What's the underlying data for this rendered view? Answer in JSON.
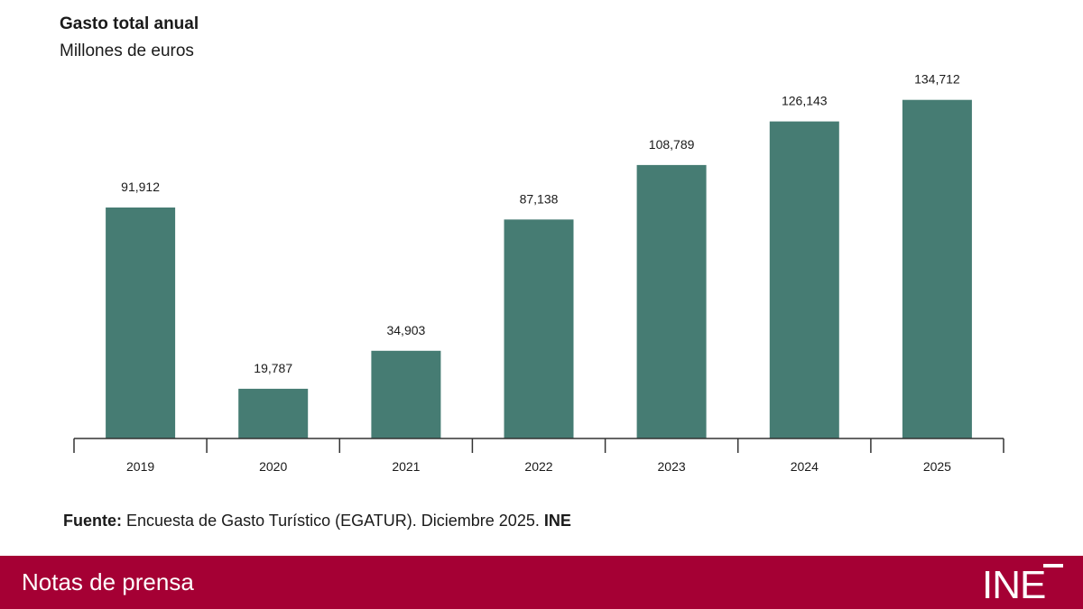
{
  "chart_data": {
    "type": "bar",
    "title": "Gasto total anual",
    "subtitle": "Millones de euros",
    "categories": [
      "2019",
      "2020",
      "2021",
      "2022",
      "2023",
      "2024",
      "2025"
    ],
    "values": [
      91912,
      19787,
      34903,
      87138,
      108789,
      126143,
      134712
    ],
    "value_labels": [
      "91,912",
      "19,787",
      "34,903",
      "87,138",
      "108,789",
      "126,143",
      "134,712"
    ],
    "ylim": [
      0,
      140000
    ],
    "xlabel": "",
    "ylabel": "",
    "grid": false,
    "bar_color": "#467c73"
  },
  "source": {
    "label": "Fuente:",
    "text": " Encuesta de Gasto Turístico (EGATUR). Diciembre 2025. ",
    "org": "INE"
  },
  "footer": {
    "text": "Notas de prensa",
    "logo_text": "INE",
    "color": "#a50034"
  }
}
